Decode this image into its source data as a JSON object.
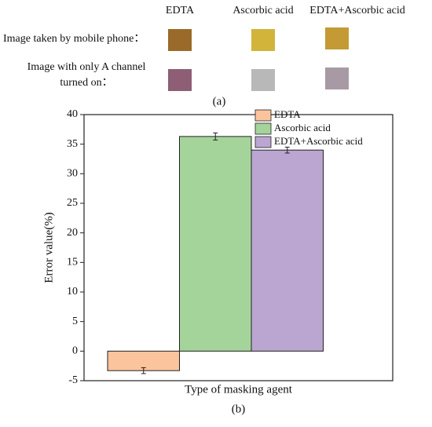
{
  "panel_a": {
    "columns": [
      "EDTA",
      "Ascorbic acid",
      "EDTA+Ascorbic acid"
    ],
    "rows": [
      {
        "label": [
          "Image taken by mobile phone："
        ]
      },
      {
        "label": [
          "Image with only A channel",
          "turned on："
        ]
      }
    ],
    "caption": "(a)"
  },
  "chart_data": {
    "type": "bar",
    "caption": "(b)",
    "x_label": "Type of masking agent",
    "y_label": "Error value(%)",
    "categories": [
      null
    ],
    "series": [
      {
        "name": "EDTA",
        "color": "#fbc49c",
        "values": [
          -3.3
        ],
        "errors": [
          0.5
        ]
      },
      {
        "name": "Ascorbic acid",
        "color": "#a5d49a",
        "values": [
          36.3
        ],
        "errors": [
          0.6
        ]
      },
      {
        "name": "EDTA+Ascorbic acid",
        "color": "#baa6d1",
        "values": [
          34.0
        ],
        "errors": [
          0.5
        ]
      }
    ],
    "ylim": [
      -5,
      40
    ],
    "yticks": [
      -5,
      0,
      5,
      10,
      15,
      20,
      25,
      30,
      35,
      40
    ],
    "legend": "upper right"
  }
}
